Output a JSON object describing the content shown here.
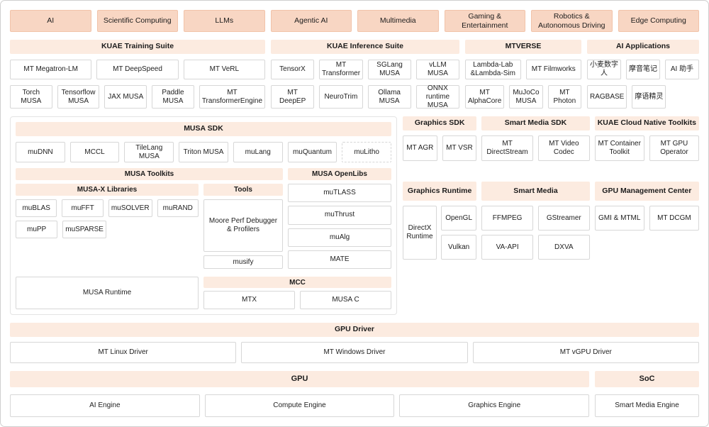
{
  "colors": {
    "category_fill": "#f8d6c3",
    "header_fill": "#fcebe0",
    "box_border": "#d7d7d7"
  },
  "categories": [
    "AI",
    "Scientific Computing",
    "LLMs",
    "Agentic AI",
    "Multimedia",
    "Gaming & Entertainment",
    "Robotics & Autonomous Driving",
    "Edge Computing"
  ],
  "suites": {
    "training": {
      "title": "KUAE Training Suite",
      "row1": [
        "MT Megatron-LM",
        "MT DeepSpeed",
        "MT VeRL"
      ],
      "row2": [
        "Torch MUSA",
        "Tensorflow MUSA",
        "JAX MUSA",
        "Paddle MUSA",
        "MT TransformerEngine"
      ]
    },
    "inference": {
      "title": "KUAE Inference Suite",
      "row1": [
        "TensorX",
        "MT Transformer",
        "SGLang MUSA",
        "vLLM MUSA"
      ],
      "row2": [
        "MT DeepEP",
        "NeuroTrim",
        "Ollama MUSA",
        "ONNX runtime MUSA"
      ]
    },
    "mtverse": {
      "title": "MTVERSE",
      "row1": [
        "Lambda-Lab &Lambda-Sim",
        "MT Filmworks"
      ],
      "row2": [
        "MT AlphaCore",
        "MuJoCo MUSA",
        "MT Photon"
      ]
    },
    "ai_applications": {
      "title": "AI Applications",
      "row1": [
        "小麦数字人",
        "摩音笔记",
        "AI 助手"
      ],
      "row2": [
        "RAGBASE",
        "摩语精灵"
      ]
    }
  },
  "musa_sdk": {
    "title": "MUSA SDK",
    "libraries": [
      "muDNN",
      "MCCL",
      "TileLang MUSA",
      "Triton MUSA",
      "muLang",
      "muQuantum",
      "muLitho"
    ],
    "toolkits": {
      "title": "MUSA Toolkits",
      "musa_x": {
        "title": "MUSA-X Libraries",
        "row1": [
          "muBLAS",
          "muFFT",
          "muSOLVER",
          "muRAND"
        ],
        "row2": [
          "muPP",
          "muSPARSE"
        ]
      },
      "tools": {
        "title": "Tools",
        "items": [
          "Moore Perf Debugger & Profilers",
          "musify"
        ]
      }
    },
    "openlibs": {
      "title": "MUSA OpenLibs",
      "items": [
        "muTLASS",
        "muThrust",
        "muAlg",
        "MATE"
      ]
    },
    "runtime": "MUSA Runtime",
    "mcc": {
      "title": "MCC",
      "items": [
        "MTX",
        "MUSA C"
      ]
    }
  },
  "graphics_sdk": {
    "title": "Graphics SDK",
    "items": [
      "MT AGR",
      "MT VSR"
    ]
  },
  "smart_media_sdk": {
    "title": "Smart Media SDK",
    "items": [
      "MT DirectStream",
      "MT Video Codec"
    ]
  },
  "cloud_native": {
    "title": "KUAE Cloud Native Toolkits",
    "items": [
      "MT Container Toolkit",
      "MT GPU Operator"
    ]
  },
  "graphics_runtime": {
    "title": "Graphics Runtime",
    "tall_item": "DirectX Runtime",
    "items": [
      "OpenGL",
      "Vulkan"
    ]
  },
  "smart_media": {
    "title": "Smart Media",
    "items": [
      "FFMPEG",
      "GStreamer",
      "VA-API",
      "DXVA"
    ]
  },
  "gpu_management": {
    "title": "GPU Management Center",
    "items": [
      "GMI & MTML",
      "MT DCGM"
    ]
  },
  "gpu_driver": {
    "title": "GPU Driver",
    "items": [
      "MT Linux Driver",
      "MT Windows Driver",
      "MT vGPU Driver"
    ]
  },
  "gpu": {
    "title": "GPU",
    "items": [
      "AI Engine",
      "Compute Engine",
      "Graphics Engine"
    ]
  },
  "soc": {
    "title": "SoC",
    "items": [
      "Smart Media Engine"
    ]
  }
}
